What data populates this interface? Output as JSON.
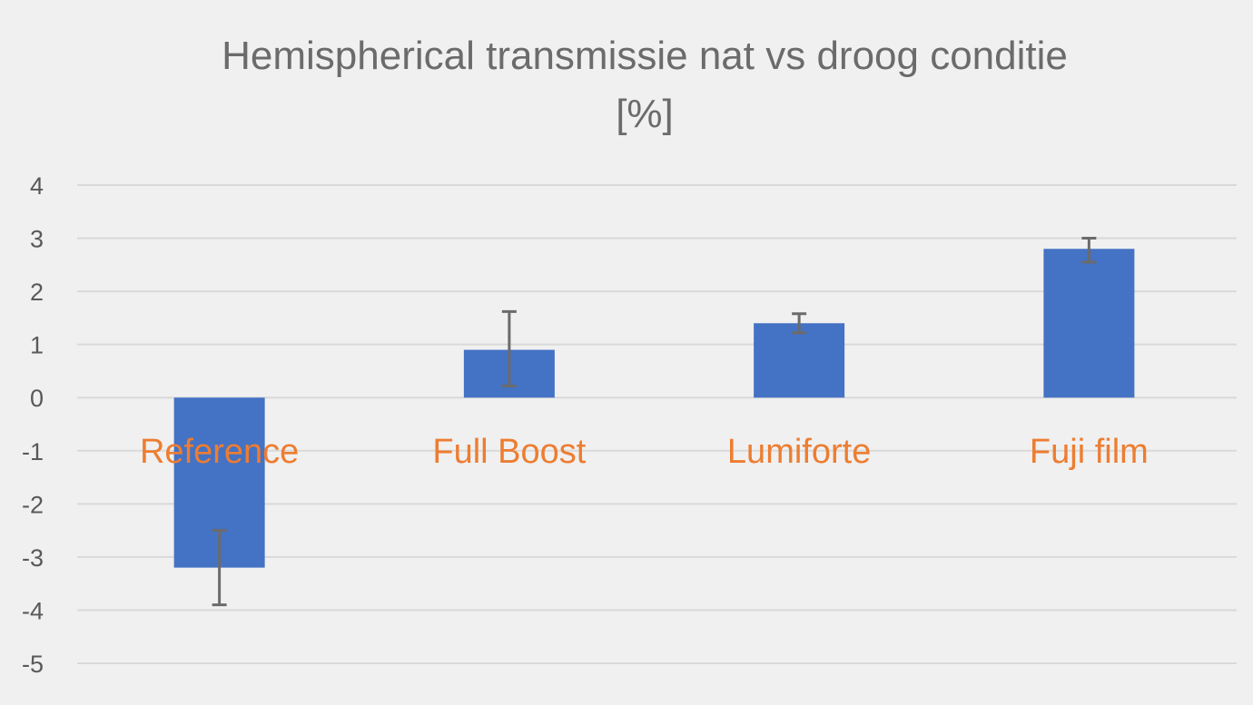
{
  "chart_data": {
    "type": "bar",
    "title_lines": [
      "Hemispherical transmissie nat  vs droog conditie",
      "[%]"
    ],
    "categories": [
      "Reference",
      "Full Boost",
      "Lumiforte",
      "Fuji film"
    ],
    "series": [
      {
        "values": [
          -3.2,
          0.9,
          1.4,
          2.8
        ],
        "error_low": [
          -3.9,
          0.22,
          1.22,
          2.55
        ],
        "error_high": [
          -2.5,
          1.62,
          1.58,
          3.0
        ]
      }
    ],
    "ylim": [
      -5,
      4
    ],
    "yticks": [
      "-5",
      "-4",
      "-3",
      "-2",
      "-1",
      "0",
      "1",
      "2",
      "3",
      "4"
    ],
    "grid": true,
    "legend": false,
    "colors": {
      "bar": "#4472c4",
      "category_label": "#ed7d31",
      "error_bar": "#6b6b6b",
      "gridline": "#d9d9d9",
      "background": "#f0f0f0"
    }
  }
}
